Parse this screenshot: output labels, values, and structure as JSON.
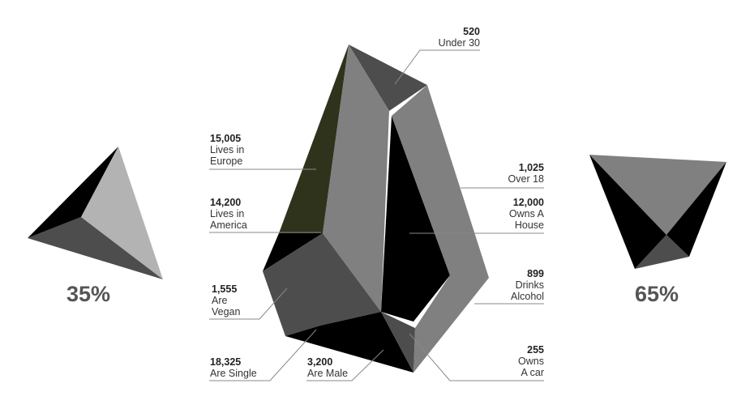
{
  "left_shape": {
    "percent_label": "35%",
    "share": 0.35
  },
  "right_shape": {
    "percent_label": "65%",
    "share": 0.65
  },
  "colors": {
    "black": "#000000",
    "dark_gray": "#4d4d4d",
    "mid_gray": "#808080",
    "light_gray": "#b3b3b3",
    "olive": "#2f331c",
    "leader_line": "#888888"
  },
  "labels": {
    "under_30": {
      "value": "520",
      "lines": [
        "Under 30"
      ]
    },
    "lives_europe": {
      "value": "15,005",
      "lines": [
        "Lives in",
        "Europe"
      ]
    },
    "over_18": {
      "value": "1,025",
      "lines": [
        "Over 18"
      ]
    },
    "lives_america": {
      "value": "14,200",
      "lines": [
        "Lives in",
        "America"
      ]
    },
    "owns_house": {
      "value": "12,000",
      "lines": [
        "Owns A",
        "House"
      ]
    },
    "vegan": {
      "value": "1,555",
      "lines": [
        "Are",
        "Vegan"
      ]
    },
    "alcohol": {
      "value": "899",
      "lines": [
        "Drinks",
        "Alcohol"
      ]
    },
    "single": {
      "value": "18,325",
      "lines": [
        "Are Single"
      ]
    },
    "male": {
      "value": "3,200",
      "lines": [
        "Are Male"
      ]
    },
    "car": {
      "value": "255",
      "lines": [
        "Owns",
        "A car"
      ]
    }
  }
}
